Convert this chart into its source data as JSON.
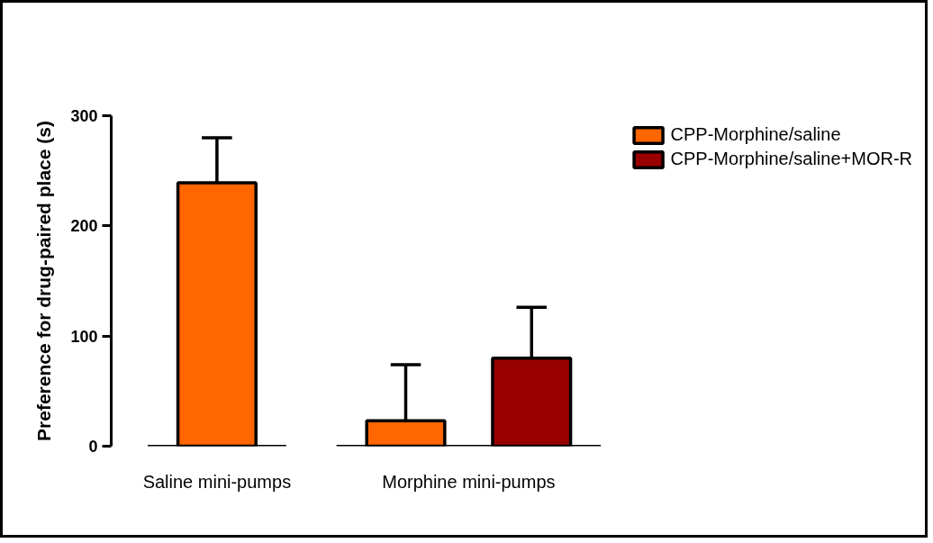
{
  "chart_data": {
    "type": "bar",
    "ylabel": "Preference for drug-paired place (s)",
    "categories": [
      "Saline mini-pumps",
      "Morphine mini-pumps"
    ],
    "series": [
      {
        "name": "CPP-Morphine/saline",
        "color": "#ff6600",
        "values": [
          239,
          23
        ],
        "errors": [
          [
            239,
            280
          ],
          [
            23,
            74
          ]
        ]
      },
      {
        "name": "CPP-Morphine/saline+MOR-R",
        "color": "#990000",
        "values": [
          null,
          80
        ],
        "errors": [
          null,
          [
            80,
            126
          ]
        ]
      }
    ],
    "ylim": [
      0,
      300
    ],
    "yticks": [
      0,
      100,
      200,
      300
    ],
    "legend": "top right"
  }
}
